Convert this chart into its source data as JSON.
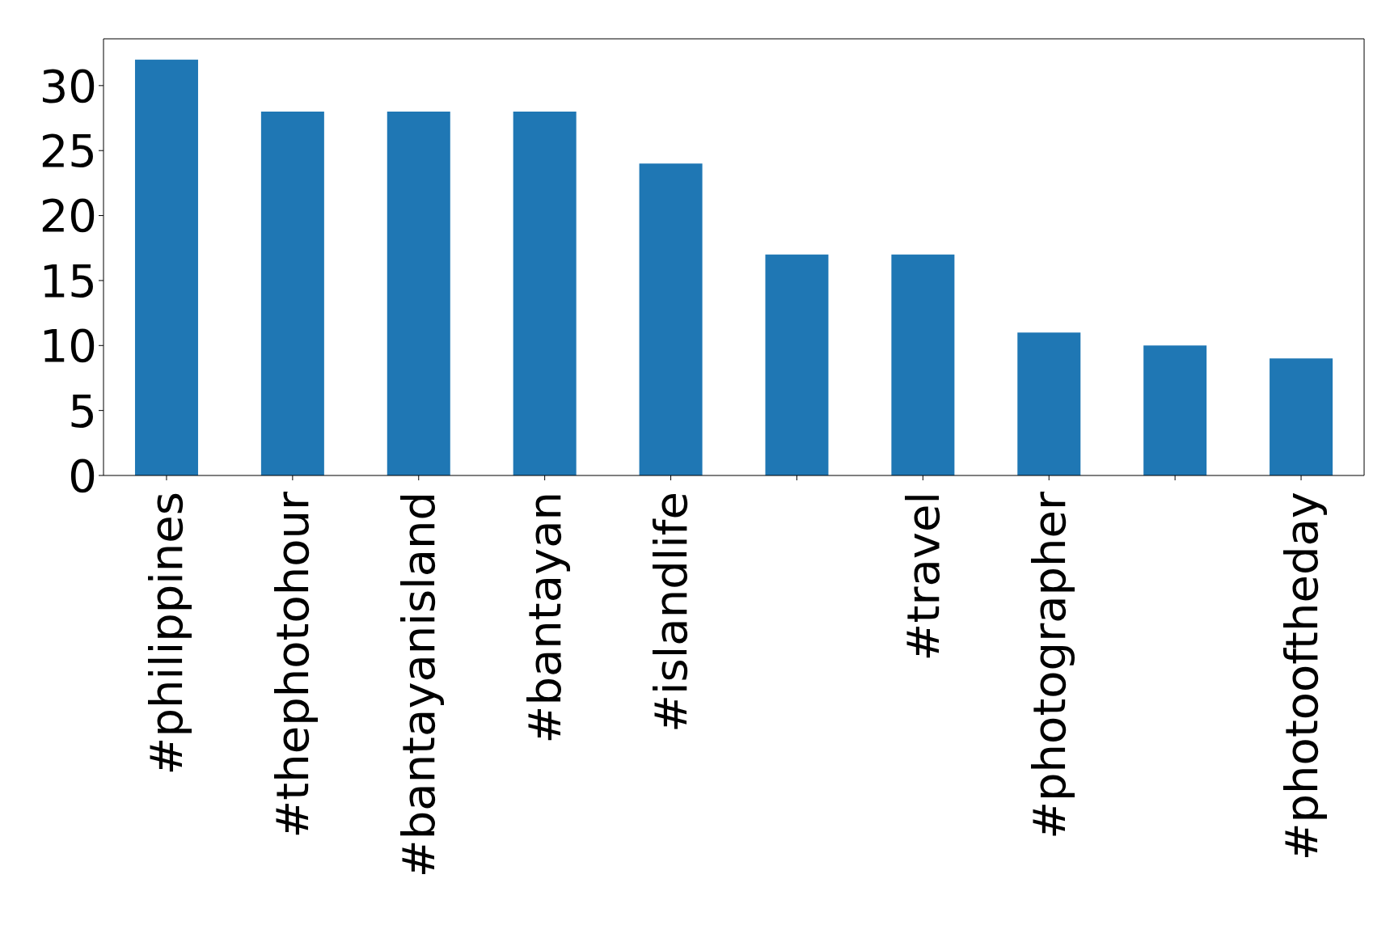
{
  "chart_data": {
    "type": "bar",
    "categories": [
      "#philippines",
      "#thephotohour",
      "#bantayanisland",
      "#bantayan",
      "#islandlife",
      null,
      "#travel",
      "#photographer",
      null,
      "#photooftheday"
    ],
    "values": [
      32,
      28,
      28,
      28,
      24,
      17,
      17,
      11,
      10,
      9
    ],
    "color": "#1f77b4",
    "ylim": [
      0,
      33.6
    ],
    "yticks": [
      0,
      5,
      10,
      15,
      20,
      25,
      30
    ]
  }
}
